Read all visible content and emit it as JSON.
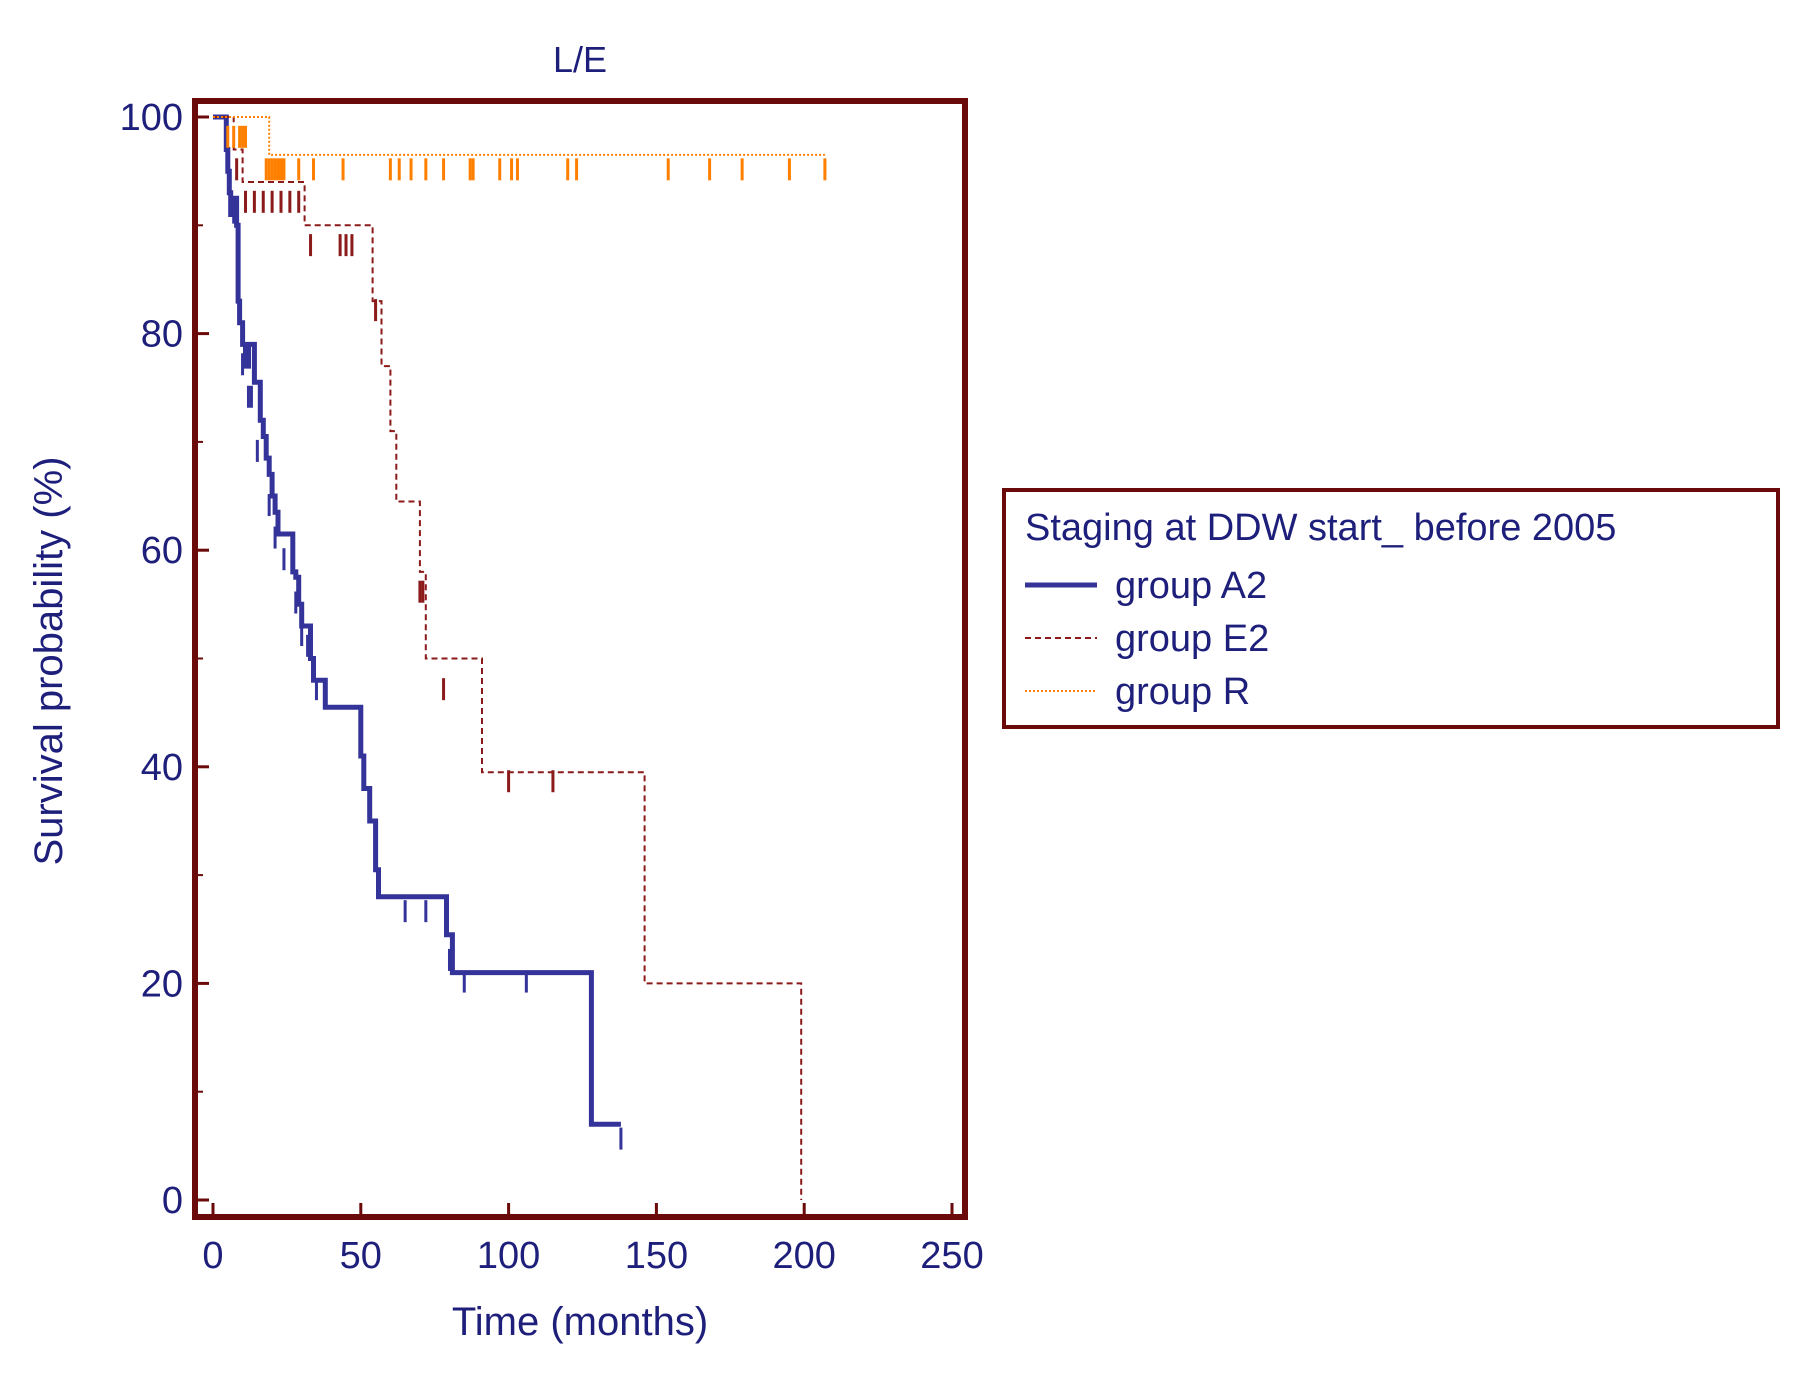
{
  "chart_data": {
    "type": "line",
    "subtype": "kaplan-meier survival curve",
    "title": "L/E",
    "xlabel": "Time (months)",
    "ylabel": "Survival probability (%)",
    "xlim": [
      0,
      250
    ],
    "ylim": [
      0,
      100
    ],
    "x_ticks": [
      0,
      50,
      100,
      150,
      200,
      250
    ],
    "x_tick_labels": [
      "0",
      "50",
      "100",
      "150",
      "200",
      "250"
    ],
    "y_ticks": [
      0,
      20,
      40,
      60,
      80,
      100
    ],
    "y_tick_labels": [
      "0",
      "20",
      "40",
      "60",
      "80",
      "100"
    ],
    "grid": false,
    "legend": {
      "title": "Staging at DDW start_ before 2005",
      "position": "right"
    },
    "colors": {
      "frame": "#6b0a0a",
      "text": "#1d1f7a"
    },
    "series": [
      {
        "name": "group A2",
        "color": "#333399",
        "style": "solid",
        "steps": [
          [
            0,
            100
          ],
          [
            4,
            100
          ],
          [
            4.5,
            97
          ],
          [
            5,
            95
          ],
          [
            5.5,
            93
          ],
          [
            6,
            91
          ],
          [
            7,
            92.5
          ],
          [
            8,
            90
          ],
          [
            8.5,
            83
          ],
          [
            9,
            81
          ],
          [
            10,
            79
          ],
          [
            11,
            77
          ],
          [
            12,
            79
          ],
          [
            14,
            75.5
          ],
          [
            16,
            72
          ],
          [
            17,
            70.5
          ],
          [
            18,
            68.5
          ],
          [
            19,
            67
          ],
          [
            20,
            65
          ],
          [
            21,
            63.5
          ],
          [
            22,
            61.5
          ],
          [
            26,
            61.5
          ],
          [
            27,
            58
          ],
          [
            28,
            57.5
          ],
          [
            29,
            55
          ],
          [
            30,
            53
          ],
          [
            32,
            53
          ],
          [
            33,
            50
          ],
          [
            34,
            48
          ],
          [
            38,
            45.5
          ],
          [
            49,
            45.5
          ],
          [
            50,
            41
          ],
          [
            51,
            38
          ],
          [
            53,
            35
          ],
          [
            55,
            30.5
          ],
          [
            56,
            28
          ],
          [
            78,
            28
          ],
          [
            79,
            24.5
          ],
          [
            81,
            21
          ],
          [
            127,
            21
          ],
          [
            128,
            7
          ],
          [
            138,
            7
          ]
        ],
        "censored": [
          [
            7,
            92
          ],
          [
            8.5,
            90
          ],
          [
            10,
            78
          ],
          [
            12,
            75
          ],
          [
            13,
            75
          ],
          [
            15,
            70
          ],
          [
            19,
            65
          ],
          [
            21,
            62
          ],
          [
            24,
            60
          ],
          [
            28,
            56
          ],
          [
            30,
            53
          ],
          [
            32,
            52
          ],
          [
            35,
            48
          ],
          [
            65,
            27.5
          ],
          [
            72,
            27.5
          ],
          [
            80,
            23
          ],
          [
            85,
            21
          ],
          [
            106,
            21
          ],
          [
            138,
            6.5
          ]
        ]
      },
      {
        "name": "group E2",
        "color": "#8b1a1a",
        "style": "dashed",
        "steps": [
          [
            0,
            100
          ],
          [
            6,
            100
          ],
          [
            7,
            97
          ],
          [
            10,
            94
          ],
          [
            30,
            94
          ],
          [
            31,
            90
          ],
          [
            53,
            90
          ],
          [
            54,
            83
          ],
          [
            57,
            77
          ],
          [
            60,
            71
          ],
          [
            62,
            64.5
          ],
          [
            69,
            64.5
          ],
          [
            70,
            58
          ],
          [
            72,
            50
          ],
          [
            90,
            50
          ],
          [
            91,
            39.5
          ],
          [
            145,
            39.5
          ],
          [
            146,
            20
          ],
          [
            198,
            20
          ],
          [
            199,
            0
          ]
        ],
        "censored": [
          [
            8,
            96
          ],
          [
            11,
            93
          ],
          [
            14,
            93
          ],
          [
            17,
            93
          ],
          [
            20,
            93
          ],
          [
            23,
            93
          ],
          [
            26,
            93
          ],
          [
            29,
            93
          ],
          [
            33,
            89
          ],
          [
            43,
            89
          ],
          [
            45,
            89
          ],
          [
            47,
            89
          ],
          [
            55,
            83
          ],
          [
            70,
            57
          ],
          [
            71,
            57
          ],
          [
            78,
            48
          ],
          [
            100,
            39.5
          ],
          [
            115,
            39.5
          ]
        ]
      },
      {
        "name": "group R",
        "color": "#ff8000",
        "style": "dotted",
        "steps": [
          [
            0,
            100
          ],
          [
            18,
            100
          ],
          [
            19,
            96.5
          ],
          [
            207,
            96.5
          ]
        ],
        "censored": [
          [
            5,
            99
          ],
          [
            7,
            99
          ],
          [
            9,
            99
          ],
          [
            10,
            99
          ],
          [
            11,
            99
          ],
          [
            18,
            96
          ],
          [
            19,
            96
          ],
          [
            20,
            96
          ],
          [
            21,
            96
          ],
          [
            22,
            96
          ],
          [
            23,
            96
          ],
          [
            24,
            96
          ],
          [
            29,
            96
          ],
          [
            34,
            96
          ],
          [
            44,
            96
          ],
          [
            60,
            96
          ],
          [
            63,
            96
          ],
          [
            67,
            96
          ],
          [
            72,
            96
          ],
          [
            78,
            96
          ],
          [
            87,
            96
          ],
          [
            88,
            96
          ],
          [
            97,
            96
          ],
          [
            101,
            96
          ],
          [
            103,
            96
          ],
          [
            120,
            96
          ],
          [
            123,
            96
          ],
          [
            154,
            96
          ],
          [
            168,
            96
          ],
          [
            179,
            96
          ],
          [
            195,
            96
          ],
          [
            207,
            96
          ]
        ]
      }
    ]
  }
}
